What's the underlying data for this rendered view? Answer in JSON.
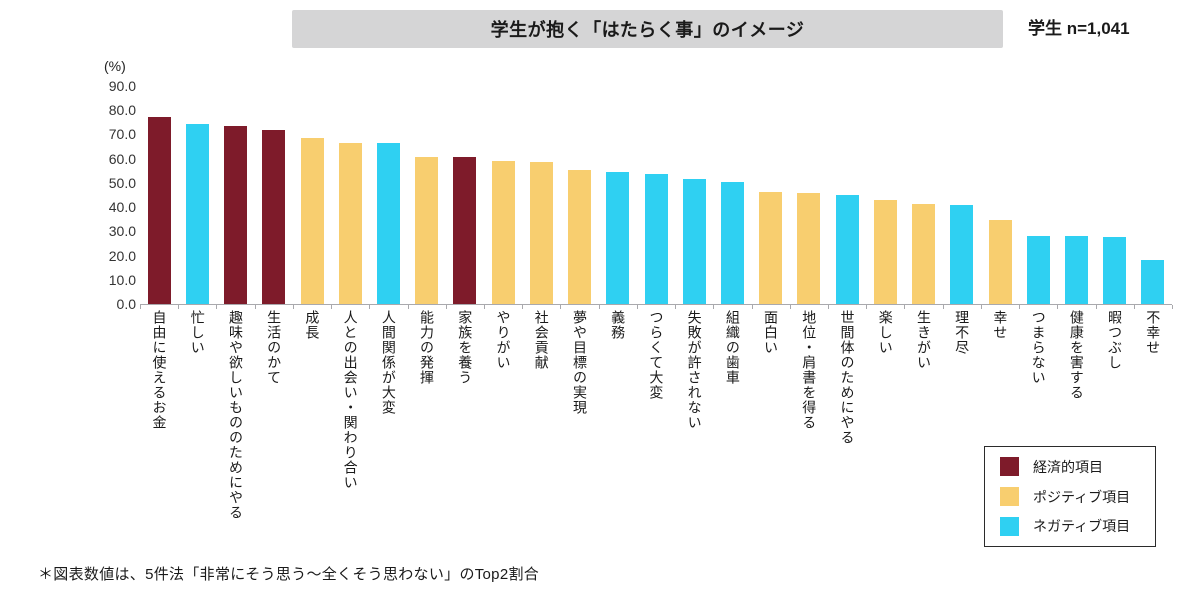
{
  "header": {
    "title": "学生が抱く「はたらく事」のイメージ",
    "sample_label": "学生 n=1,041"
  },
  "chart_data": {
    "type": "bar",
    "title": "学生が抱く「はたらく事」のイメージ",
    "sample_size": "n=1,041",
    "unit_label": "(%)",
    "ylim": [
      0,
      90
    ],
    "ytick_interval": 10,
    "ytick_format_decimals": 1,
    "grid": false,
    "legend_position": "bottom-right",
    "categories": [
      "自由に使えるお金",
      "忙しい",
      "趣味や欲しいもののためにやる",
      "生活のかて",
      "成長",
      "人との出会い・関わり合い",
      "人間関係が大変",
      "能力の発揮",
      "家族を養う",
      "やりがい",
      "社会貢献",
      "夢や目標の実現",
      "義務",
      "つらくて大変",
      "失敗が許されない",
      "組織の歯車",
      "面白い",
      "地位・肩書を得る",
      "世間体のためにやる",
      "楽しい",
      "生きがい",
      "理不尽",
      "幸せ",
      "つまらない",
      "健康を害する",
      "暇つぶし",
      "不幸せ"
    ],
    "values": [
      77.3,
      74.2,
      73.6,
      71.9,
      68.6,
      66.6,
      66.5,
      60.8,
      60.5,
      59.2,
      58.5,
      55.4,
      54.7,
      53.6,
      51.8,
      50.5,
      46.3,
      45.7,
      45.0,
      43.0,
      41.3,
      40.7,
      34.8,
      28.1,
      28.0,
      27.7,
      18.3
    ],
    "groups": [
      "economic",
      "negative",
      "economic",
      "economic",
      "positive",
      "positive",
      "negative",
      "positive",
      "economic",
      "positive",
      "positive",
      "positive",
      "negative",
      "negative",
      "negative",
      "negative",
      "positive",
      "positive",
      "negative",
      "positive",
      "positive",
      "negative",
      "positive",
      "negative",
      "negative",
      "negative",
      "negative"
    ],
    "group_colors": {
      "economic": "#7E1B2A",
      "positive": "#F8CE6F",
      "negative": "#2FD0F2"
    },
    "legend": [
      {
        "key": "economic",
        "label": "経済的項目",
        "color": "#7E1B2A"
      },
      {
        "key": "positive",
        "label": "ポジティブ項目",
        "color": "#F8CE6F"
      },
      {
        "key": "negative",
        "label": "ネガティブ項目",
        "color": "#2FD0F2"
      }
    ]
  },
  "footnote": "＊図表数値は、5件法「非常にそう思う～全くそう思わない」のTop2割合"
}
